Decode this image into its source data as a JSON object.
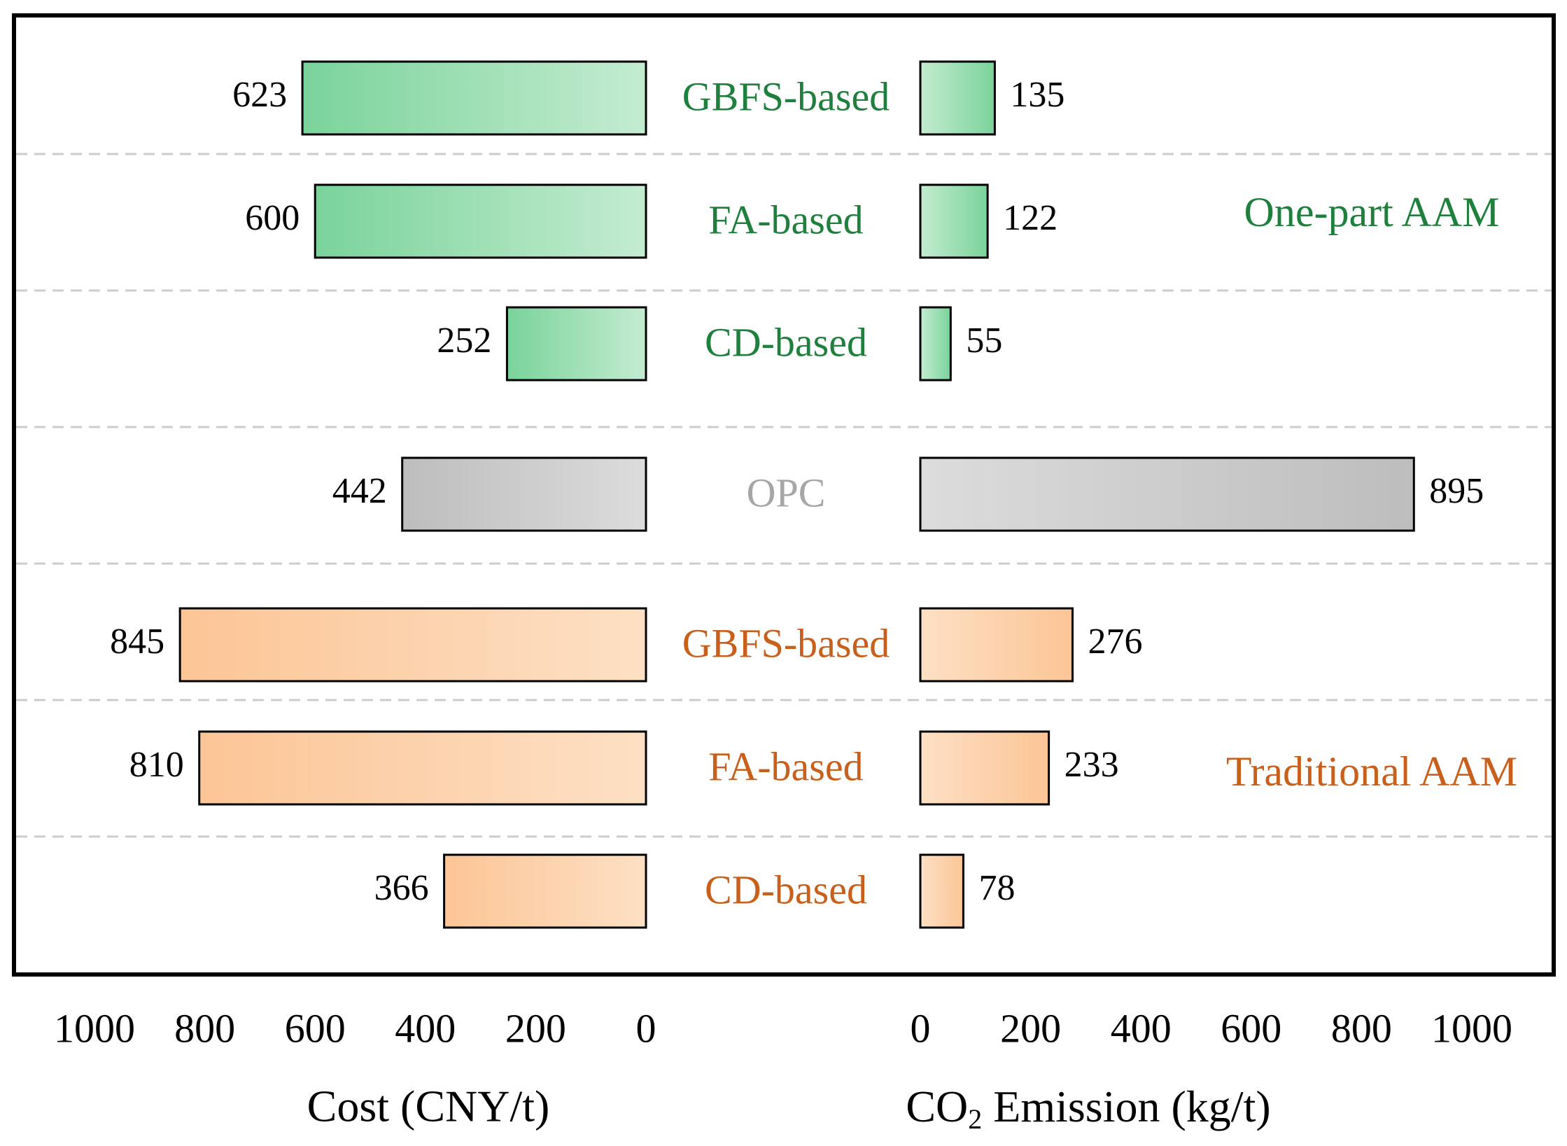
{
  "chart_data": {
    "type": "bar",
    "orientation": "horizontal-butterfly",
    "categories": [
      "GBFS-based",
      "FA-based",
      "CD-based",
      "OPC",
      "GBFS-based",
      "FA-based",
      "CD-based"
    ],
    "category_groups": [
      "one_part",
      "one_part",
      "one_part",
      "opc",
      "traditional",
      "traditional",
      "traditional"
    ],
    "series": [
      {
        "name": "Cost (CNY/t)",
        "values": [
          623,
          600,
          252,
          442,
          845,
          810,
          366
        ]
      },
      {
        "name": "CO2 Emission (kg/t)",
        "values": [
          135,
          122,
          55,
          895,
          276,
          233,
          78
        ]
      }
    ],
    "left_axis": {
      "label": "Cost (CNY/t)",
      "range": [
        0,
        1000
      ],
      "ticks": [
        1000,
        800,
        600,
        400,
        200,
        0
      ],
      "direction": "reversed"
    },
    "right_axis": {
      "label_prefix": "CO",
      "label_subscript": "2",
      "label_suffix": " Emission (kg/t)",
      "range": [
        0,
        1000
      ],
      "ticks": [
        0,
        200,
        400,
        600,
        800,
        1000
      ]
    },
    "group_labels": {
      "one_part": "One-part AAM",
      "traditional": "Traditional AAM"
    },
    "colors": {
      "one_part_text": "#1f7f3c",
      "one_part_bar_dark": "#7ad39a",
      "one_part_bar_light": "#c4ecd1",
      "opc_text": "#a6a6a6",
      "opc_bar_dark": "#bdbdbd",
      "opc_bar_light": "#dcdcdc",
      "traditional_text": "#c8601c",
      "traditional_bar_dark": "#fcc596",
      "traditional_bar_light": "#fde0c4",
      "separator": "#cccccc"
    },
    "grid": false
  }
}
